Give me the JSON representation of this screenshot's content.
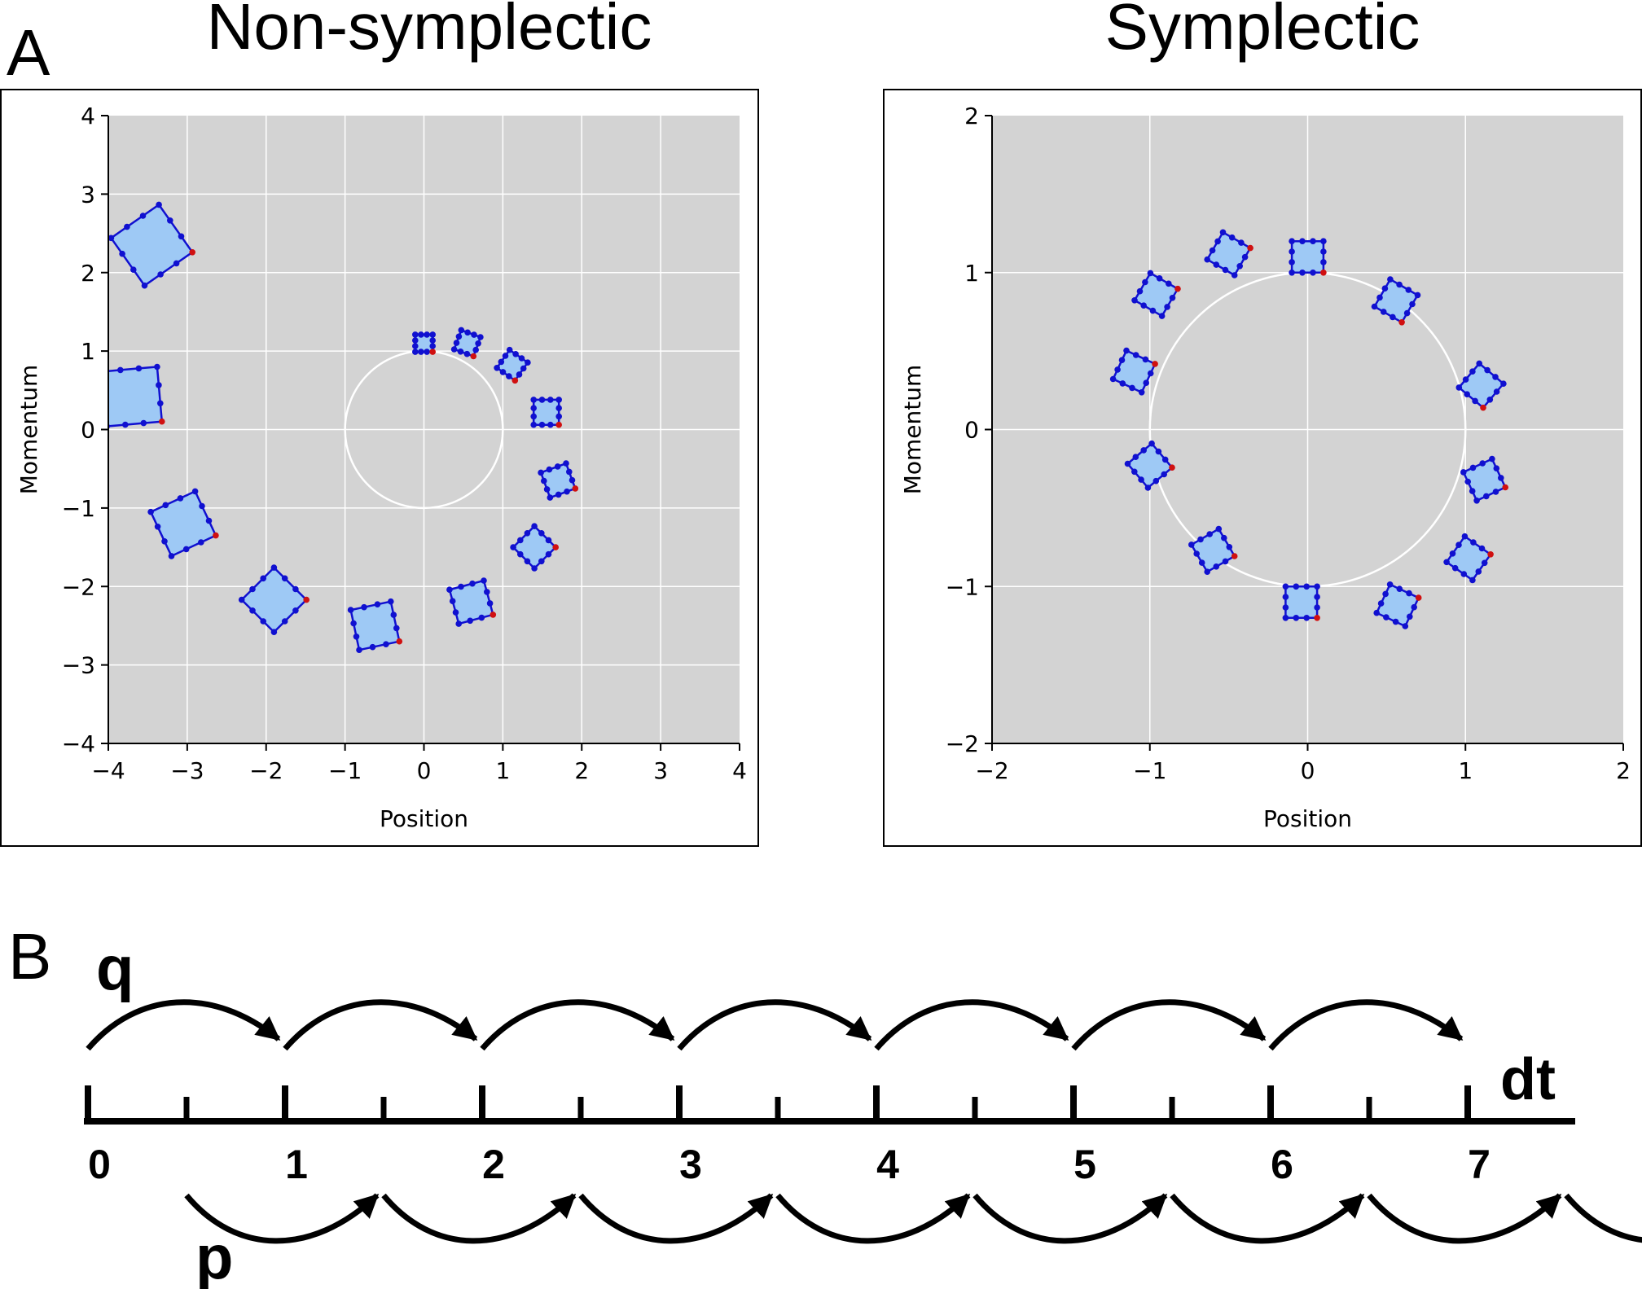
{
  "panel_a": {
    "letter": "A",
    "left_title": "Non-symplectic",
    "right_title": "Symplectic"
  },
  "panel_b": {
    "letter": "B",
    "q_label": "q",
    "p_label": "p",
    "dt_label": "dt",
    "ticks": [
      "0",
      "1",
      "2",
      "3",
      "4",
      "5",
      "6",
      "7"
    ]
  },
  "colors": {
    "plot_background": "#d3d3d3",
    "grid": "#ffffff",
    "square_fill": "#9ec9f5",
    "square_edge": "#1010d0",
    "marker_point": "#1010d0",
    "reference_point": "#d01010"
  },
  "chart_data": [
    {
      "type": "scatter",
      "title": "Non-symplectic",
      "xlabel": "Position",
      "ylabel": "Momentum",
      "xlim": [
        -4,
        4
      ],
      "ylim": [
        -4,
        4
      ],
      "xticks": [
        "−4",
        "−3",
        "−2",
        "−1",
        "0",
        "1",
        "2",
        "3",
        "4"
      ],
      "yticks": [
        "−4",
        "−3",
        "−2",
        "−1",
        "0",
        "1",
        "2",
        "3",
        "4"
      ],
      "grid": true,
      "reference_circle_radius": 1,
      "squares": [
        {
          "cx": 0.0,
          "cy": 1.1,
          "size": 0.22,
          "angle": 0
        },
        {
          "cx": 0.55,
          "cy": 1.1,
          "size": 0.26,
          "angle": -20
        },
        {
          "cx": 1.12,
          "cy": 0.82,
          "size": 0.28,
          "angle": -35
        },
        {
          "cx": 1.55,
          "cy": 0.22,
          "size": 0.32,
          "angle": 0
        },
        {
          "cx": 1.7,
          "cy": -0.65,
          "size": 0.34,
          "angle": 20
        },
        {
          "cx": 1.4,
          "cy": -1.5,
          "size": 0.38,
          "angle": 45
        },
        {
          "cx": 0.6,
          "cy": -2.2,
          "size": 0.45,
          "angle": 15
        },
        {
          "cx": -0.62,
          "cy": -2.5,
          "size": 0.52,
          "angle": 12
        },
        {
          "cx": -1.9,
          "cy": -2.17,
          "size": 0.58,
          "angle": 45
        },
        {
          "cx": -3.05,
          "cy": -1.2,
          "size": 0.62,
          "angle": 25
        },
        {
          "cx": -3.7,
          "cy": 0.42,
          "size": 0.7,
          "angle": 5
        },
        {
          "cx": -3.45,
          "cy": 2.35,
          "size": 0.74,
          "angle": 35
        }
      ]
    },
    {
      "type": "scatter",
      "title": "Symplectic",
      "xlabel": "Position",
      "ylabel": "Momentum",
      "xlim": [
        -2,
        2
      ],
      "ylim": [
        -2,
        2
      ],
      "xticks": [
        "−2",
        "−1",
        "0",
        "1",
        "2"
      ],
      "yticks": [
        "−2",
        "−1",
        "0",
        "1",
        "2"
      ],
      "grid": true,
      "reference_circle_radius": 1,
      "squares": [
        {
          "cx": 0.0,
          "cy": 1.1,
          "size": 0.2,
          "angle": 0
        },
        {
          "cx": 0.56,
          "cy": 0.82,
          "size": 0.2,
          "angle": -30
        },
        {
          "cx": 1.1,
          "cy": 0.28,
          "size": 0.2,
          "angle": -40
        },
        {
          "cx": 1.12,
          "cy": -0.32,
          "size": 0.2,
          "angle": 25
        },
        {
          "cx": 1.02,
          "cy": -0.82,
          "size": 0.2,
          "angle": 55
        },
        {
          "cx": 0.57,
          "cy": -1.12,
          "size": 0.2,
          "angle": 65
        },
        {
          "cx": -0.04,
          "cy": -1.1,
          "size": 0.2,
          "angle": 0
        },
        {
          "cx": -0.6,
          "cy": -0.77,
          "size": 0.2,
          "angle": 30
        },
        {
          "cx": -1.0,
          "cy": -0.23,
          "size": 0.2,
          "angle": 40
        },
        {
          "cx": -1.1,
          "cy": 0.37,
          "size": 0.2,
          "angle": 65
        },
        {
          "cx": -0.96,
          "cy": 0.86,
          "size": 0.2,
          "angle": 60
        },
        {
          "cx": -0.5,
          "cy": 1.12,
          "size": 0.2,
          "angle": 60
        }
      ]
    }
  ]
}
